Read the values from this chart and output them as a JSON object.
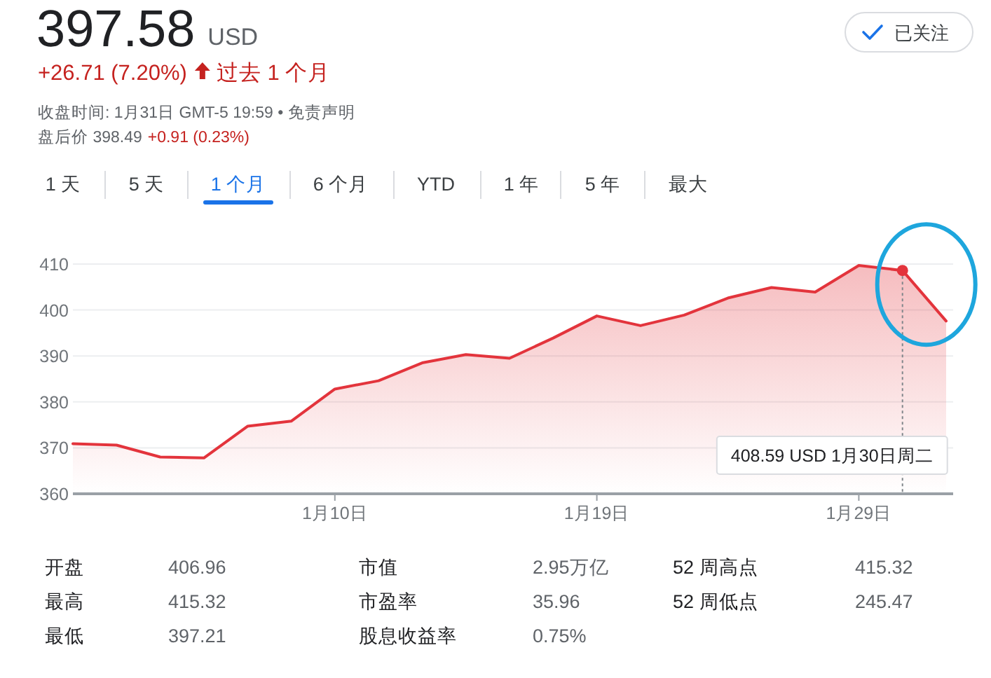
{
  "chart_data": {
    "type": "area",
    "title": "397.58 USD",
    "annotations": [
      "+26.71 (7.20%)",
      "过去 1 个月",
      "收盘时间: 1月31日 GMT-5 19:59 • 免责声明",
      "盘后价 398.49",
      "+0.91 (0.23%)",
      "已关注",
      "1 天",
      "5 天",
      "1 个月",
      "6 个月",
      "YTD",
      "1 年",
      "5 年",
      "最大",
      "开盘",
      "406.96",
      "市值",
      "2.95万亿",
      "52 周高点",
      "415.32",
      "最高",
      "415.32",
      "市盈率",
      "35.96",
      "52 周低点",
      "245.47",
      "最低",
      "397.21",
      "股息收益率",
      "0.75%",
      "408.59 USD 1月30日周二"
    ],
    "categories": [
      null,
      null,
      null,
      null,
      null,
      null,
      "1月10日",
      null,
      null,
      null,
      null,
      null,
      "1月19日",
      null,
      null,
      null,
      null,
      null,
      "1月29日",
      null,
      null
    ],
    "series": [
      {
        "color": "#e3343c",
        "values": [
          370.9,
          370.6,
          368.0,
          367.8,
          374.7,
          375.8,
          382.8,
          384.6,
          388.5,
          390.3,
          389.5,
          393.9,
          398.7,
          396.6,
          398.9,
          402.6,
          404.9,
          403.9,
          409.7,
          408.6,
          397.6
        ]
      },
      {
        "type": "lollipop",
        "color": "#e3343c",
        "line_style": "dashed",
        "values": [
          null,
          null,
          null,
          null,
          null,
          null,
          null,
          null,
          null,
          null,
          null,
          null,
          null,
          null,
          null,
          null,
          null,
          null,
          null,
          408.6,
          null
        ]
      }
    ],
    "ylim": [
      360,
      410
    ],
    "yticks": [
      360,
      370,
      380,
      390,
      400,
      410
    ],
    "grid": "y"
  }
}
